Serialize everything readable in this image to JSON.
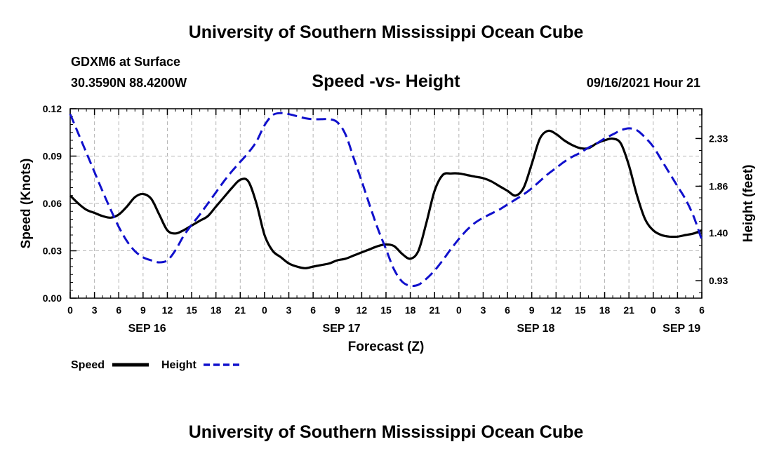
{
  "header": {
    "title": "University of Southern Mississippi Ocean Cube",
    "station": "GDXM6 at Surface",
    "coords": "30.3590N  88.4200W",
    "subtitle": "Speed -vs- Height",
    "datetime": "09/16/2021 Hour 21"
  },
  "footer": {
    "title": "University of Southern Mississippi Ocean Cube"
  },
  "colors": {
    "speed": "#000000",
    "height": "#1010cc",
    "grid": "#b4b4b4"
  },
  "chart_data": {
    "type": "line",
    "title": "Speed -vs- Height",
    "xlabel": "Forecast (Z)",
    "ylabel": "Speed (Knots)",
    "y2label": "Height (feet)",
    "xlim": [
      0,
      78
    ],
    "ylim": [
      0,
      0.12
    ],
    "y2lim": [
      0.758,
      2.623
    ],
    "x_tick_labels": [
      "0",
      "3",
      "6",
      "9",
      "12",
      "15",
      "18",
      "21",
      "0",
      "3",
      "6",
      "9",
      "12",
      "15",
      "18",
      "21",
      "0",
      "3",
      "6",
      "9",
      "12",
      "15",
      "18",
      "21",
      "0",
      "3",
      "6"
    ],
    "y_ticks": [
      "0.00",
      "0.03",
      "0.06",
      "0.09",
      "0.12"
    ],
    "y2_ticks": [
      "0.93",
      "1.40",
      "1.86",
      "2.33"
    ],
    "date_labels": [
      {
        "label": "SEP 16",
        "x": 9.5
      },
      {
        "label": "SEP 17",
        "x": 33.5
      },
      {
        "label": "SEP 18",
        "x": 57.5
      },
      {
        "label": "SEP 19",
        "x": 75.5
      }
    ],
    "grid": true,
    "series": [
      {
        "name": "Speed",
        "axis": "left",
        "style": "solid",
        "x": [
          0,
          1,
          2,
          3,
          4,
          5,
          6,
          7,
          8,
          9,
          10,
          11,
          12,
          13,
          14,
          15,
          16,
          17,
          18,
          19,
          20,
          21,
          22,
          23,
          24,
          25,
          26,
          27,
          28,
          29,
          30,
          31,
          32,
          33,
          34,
          35,
          36,
          37,
          38,
          39,
          40,
          41,
          42,
          43,
          44,
          45,
          46,
          47,
          48,
          49,
          50,
          51,
          52,
          53,
          54,
          55,
          56,
          57,
          58,
          59,
          60,
          61,
          62,
          63,
          64,
          65,
          66,
          67,
          68,
          69,
          70,
          71,
          72,
          73,
          74,
          75,
          76,
          77,
          78
        ],
        "values": [
          0.065,
          0.06,
          0.056,
          0.054,
          0.052,
          0.051,
          0.053,
          0.058,
          0.064,
          0.066,
          0.063,
          0.053,
          0.043,
          0.041,
          0.043,
          0.046,
          0.049,
          0.052,
          0.058,
          0.064,
          0.07,
          0.075,
          0.074,
          0.06,
          0.04,
          0.03,
          0.026,
          0.022,
          0.02,
          0.019,
          0.02,
          0.021,
          0.022,
          0.024,
          0.025,
          0.027,
          0.029,
          0.031,
          0.033,
          0.034,
          0.033,
          0.028,
          0.025,
          0.03,
          0.048,
          0.068,
          0.078,
          0.079,
          0.079,
          0.078,
          0.077,
          0.076,
          0.074,
          0.071,
          0.068,
          0.065,
          0.07,
          0.085,
          0.101,
          0.106,
          0.104,
          0.1,
          0.097,
          0.095,
          0.095,
          0.098,
          0.1,
          0.101,
          0.098,
          0.084,
          0.065,
          0.05,
          0.043,
          0.04,
          0.039,
          0.039,
          0.04,
          0.041,
          0.043
        ]
      },
      {
        "name": "Height",
        "axis": "right",
        "style": "dashed",
        "x": [
          0,
          1,
          2,
          3,
          4,
          5,
          6,
          7,
          8,
          9,
          10,
          11,
          12,
          13,
          14,
          15,
          16,
          17,
          18,
          19,
          20,
          21,
          22,
          23,
          24,
          25,
          26,
          27,
          28,
          29,
          30,
          31,
          32,
          33,
          34,
          35,
          36,
          37,
          38,
          39,
          40,
          41,
          42,
          43,
          44,
          45,
          46,
          47,
          48,
          49,
          50,
          51,
          52,
          53,
          54,
          55,
          56,
          57,
          58,
          59,
          60,
          61,
          62,
          63,
          64,
          65,
          66,
          67,
          68,
          69,
          70,
          71,
          72,
          73,
          74,
          75,
          76,
          77,
          78
        ],
        "values": [
          2.57,
          2.38,
          2.19,
          2.0,
          1.81,
          1.63,
          1.46,
          1.32,
          1.22,
          1.16,
          1.13,
          1.11,
          1.13,
          1.23,
          1.37,
          1.48,
          1.58,
          1.69,
          1.8,
          1.91,
          2.01,
          2.1,
          2.19,
          2.3,
          2.46,
          2.56,
          2.58,
          2.57,
          2.55,
          2.53,
          2.52,
          2.52,
          2.52,
          2.49,
          2.37,
          2.14,
          1.91,
          1.67,
          1.44,
          1.24,
          1.04,
          0.92,
          0.88,
          0.89,
          0.95,
          1.03,
          1.13,
          1.24,
          1.34,
          1.43,
          1.5,
          1.55,
          1.59,
          1.63,
          1.68,
          1.73,
          1.78,
          1.84,
          1.91,
          1.98,
          2.04,
          2.1,
          2.15,
          2.19,
          2.24,
          2.28,
          2.33,
          2.37,
          2.41,
          2.43,
          2.41,
          2.34,
          2.25,
          2.12,
          1.99,
          1.86,
          1.73,
          1.56,
          1.33
        ]
      }
    ],
    "legend": [
      {
        "label": "Speed",
        "style": "solid"
      },
      {
        "label": "Height",
        "style": "dashed"
      }
    ],
    "legend_position": "bottom-left"
  }
}
